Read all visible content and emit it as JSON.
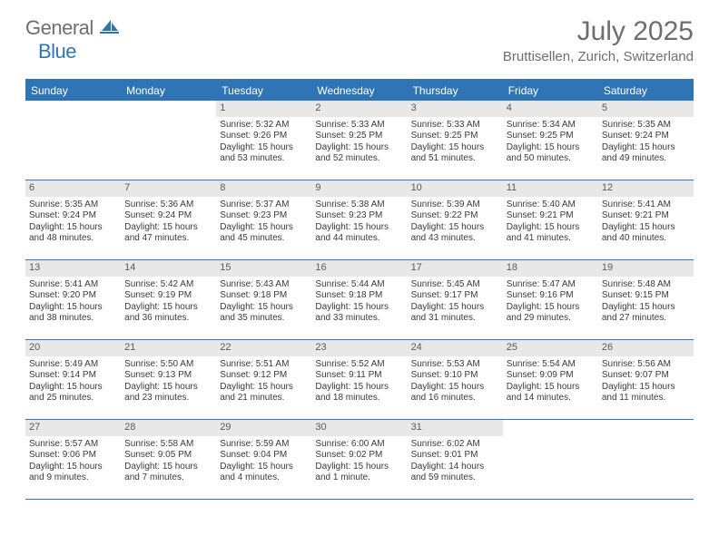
{
  "brand": {
    "general": "General",
    "blue": "Blue"
  },
  "title": "July 2025",
  "location": "Bruttisellen, Zurich, Switzerland",
  "colors": {
    "accent": "#2f75b5",
    "header_text": "#6e6e6e",
    "daynum_bg": "#e8e8e8",
    "body_text": "#3a3a3a"
  },
  "day_names": [
    "Sunday",
    "Monday",
    "Tuesday",
    "Wednesday",
    "Thursday",
    "Friday",
    "Saturday"
  ],
  "weeks": [
    [
      null,
      null,
      {
        "n": "1",
        "sr": "5:32 AM",
        "ss": "9:26 PM",
        "dl": "15 hours and 53 minutes."
      },
      {
        "n": "2",
        "sr": "5:33 AM",
        "ss": "9:25 PM",
        "dl": "15 hours and 52 minutes."
      },
      {
        "n": "3",
        "sr": "5:33 AM",
        "ss": "9:25 PM",
        "dl": "15 hours and 51 minutes."
      },
      {
        "n": "4",
        "sr": "5:34 AM",
        "ss": "9:25 PM",
        "dl": "15 hours and 50 minutes."
      },
      {
        "n": "5",
        "sr": "5:35 AM",
        "ss": "9:24 PM",
        "dl": "15 hours and 49 minutes."
      }
    ],
    [
      {
        "n": "6",
        "sr": "5:35 AM",
        "ss": "9:24 PM",
        "dl": "15 hours and 48 minutes."
      },
      {
        "n": "7",
        "sr": "5:36 AM",
        "ss": "9:24 PM",
        "dl": "15 hours and 47 minutes."
      },
      {
        "n": "8",
        "sr": "5:37 AM",
        "ss": "9:23 PM",
        "dl": "15 hours and 45 minutes."
      },
      {
        "n": "9",
        "sr": "5:38 AM",
        "ss": "9:23 PM",
        "dl": "15 hours and 44 minutes."
      },
      {
        "n": "10",
        "sr": "5:39 AM",
        "ss": "9:22 PM",
        "dl": "15 hours and 43 minutes."
      },
      {
        "n": "11",
        "sr": "5:40 AM",
        "ss": "9:21 PM",
        "dl": "15 hours and 41 minutes."
      },
      {
        "n": "12",
        "sr": "5:41 AM",
        "ss": "9:21 PM",
        "dl": "15 hours and 40 minutes."
      }
    ],
    [
      {
        "n": "13",
        "sr": "5:41 AM",
        "ss": "9:20 PM",
        "dl": "15 hours and 38 minutes."
      },
      {
        "n": "14",
        "sr": "5:42 AM",
        "ss": "9:19 PM",
        "dl": "15 hours and 36 minutes."
      },
      {
        "n": "15",
        "sr": "5:43 AM",
        "ss": "9:18 PM",
        "dl": "15 hours and 35 minutes."
      },
      {
        "n": "16",
        "sr": "5:44 AM",
        "ss": "9:18 PM",
        "dl": "15 hours and 33 minutes."
      },
      {
        "n": "17",
        "sr": "5:45 AM",
        "ss": "9:17 PM",
        "dl": "15 hours and 31 minutes."
      },
      {
        "n": "18",
        "sr": "5:47 AM",
        "ss": "9:16 PM",
        "dl": "15 hours and 29 minutes."
      },
      {
        "n": "19",
        "sr": "5:48 AM",
        "ss": "9:15 PM",
        "dl": "15 hours and 27 minutes."
      }
    ],
    [
      {
        "n": "20",
        "sr": "5:49 AM",
        "ss": "9:14 PM",
        "dl": "15 hours and 25 minutes."
      },
      {
        "n": "21",
        "sr": "5:50 AM",
        "ss": "9:13 PM",
        "dl": "15 hours and 23 minutes."
      },
      {
        "n": "22",
        "sr": "5:51 AM",
        "ss": "9:12 PM",
        "dl": "15 hours and 21 minutes."
      },
      {
        "n": "23",
        "sr": "5:52 AM",
        "ss": "9:11 PM",
        "dl": "15 hours and 18 minutes."
      },
      {
        "n": "24",
        "sr": "5:53 AM",
        "ss": "9:10 PM",
        "dl": "15 hours and 16 minutes."
      },
      {
        "n": "25",
        "sr": "5:54 AM",
        "ss": "9:09 PM",
        "dl": "15 hours and 14 minutes."
      },
      {
        "n": "26",
        "sr": "5:56 AM",
        "ss": "9:07 PM",
        "dl": "15 hours and 11 minutes."
      }
    ],
    [
      {
        "n": "27",
        "sr": "5:57 AM",
        "ss": "9:06 PM",
        "dl": "15 hours and 9 minutes."
      },
      {
        "n": "28",
        "sr": "5:58 AM",
        "ss": "9:05 PM",
        "dl": "15 hours and 7 minutes."
      },
      {
        "n": "29",
        "sr": "5:59 AM",
        "ss": "9:04 PM",
        "dl": "15 hours and 4 minutes."
      },
      {
        "n": "30",
        "sr": "6:00 AM",
        "ss": "9:02 PM",
        "dl": "15 hours and 1 minute."
      },
      {
        "n": "31",
        "sr": "6:02 AM",
        "ss": "9:01 PM",
        "dl": "14 hours and 59 minutes."
      },
      null,
      null
    ]
  ],
  "labels": {
    "sunrise": "Sunrise: ",
    "sunset": "Sunset: ",
    "daylight": "Daylight: "
  }
}
